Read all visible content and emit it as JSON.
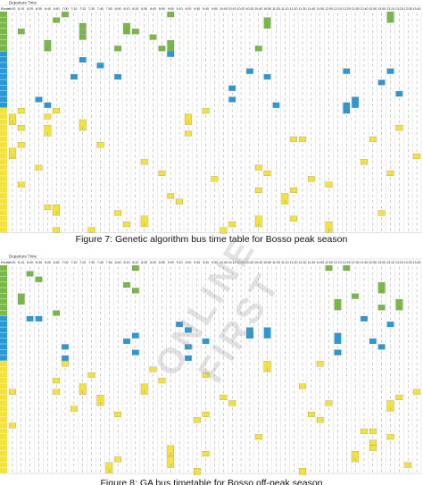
{
  "figure1": {
    "table_title": "Departure Time",
    "caption": "Figure 7: Genetic algorithm bus time table for Bosso peak season",
    "header_row": [
      "Route",
      "6:00",
      "6:10",
      "6:20",
      "6:30",
      "6:40",
      "6:50",
      "7:00",
      "7:10",
      "7:20",
      "7:30",
      "7:40",
      "7:50",
      "8:00",
      "8:10",
      "8:20",
      "8:30",
      "8:40",
      "8:50",
      "9:00",
      "9:10",
      "9:20",
      "9:30",
      "9:40",
      "9:50",
      "10:00",
      "10:10",
      "10:20",
      "10:30",
      "10:40",
      "10:50",
      "11:00",
      "11:10",
      "11:20",
      "11:30",
      "11:40",
      "11:50",
      "12:00",
      "12:10",
      "12:20",
      "12:30",
      "12:40",
      "12:50",
      "13:00",
      "13:10",
      "13:20",
      "13:30",
      "13:40",
      "13:50"
    ],
    "rows": 39,
    "green_rows": 7,
    "blue_rows": 10,
    "colors": {
      "green": "#79b847",
      "blue": "#2a98d6",
      "yellow": "#f4e23a",
      "grid": "#c9c9c9",
      "label": "#6fae3f"
    }
  },
  "figure2": {
    "table_title": "Departure Time",
    "caption": "Figure 8: GA bus timetable for Bosso off-peak season",
    "rows": 37,
    "green_rows": 9,
    "blue_rows": 8,
    "colors": {
      "green": "#79b847",
      "blue": "#2a98d6",
      "yellow": "#f4e23a",
      "grid": "#c9c9c9",
      "label": "#6fae3f"
    }
  },
  "watermark": "ONLINE FIRST"
}
